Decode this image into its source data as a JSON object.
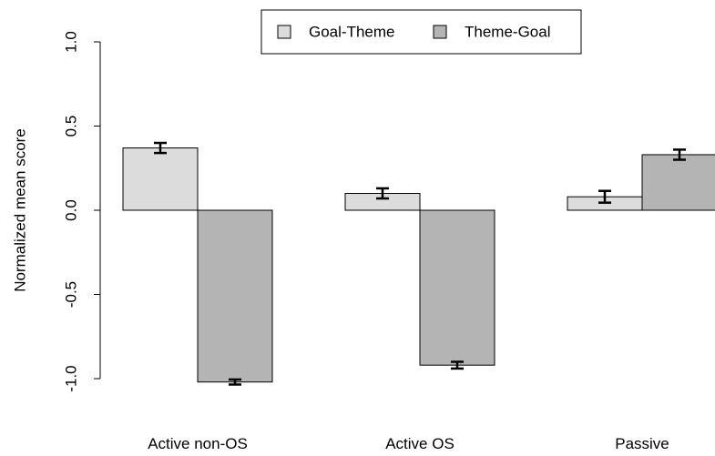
{
  "chart_data": {
    "type": "bar",
    "categories": [
      "Active non-OS",
      "Active OS",
      "Passive"
    ],
    "series": [
      {
        "name": "Goal-Theme",
        "color": "#dcdcdc",
        "values": [
          0.37,
          0.1,
          0.08
        ],
        "error": [
          0.03,
          0.03,
          0.035
        ]
      },
      {
        "name": "Theme-Goal",
        "color": "#b4b4b4",
        "values": [
          -1.02,
          -0.92,
          0.33
        ],
        "error": [
          0.015,
          0.02,
          0.03
        ]
      }
    ],
    "ylabel": "Normalized mean score",
    "xlabel": "",
    "ylim": [
      -1.0,
      1.0
    ],
    "yticks": [
      -1.0,
      -0.5,
      0.0,
      0.5,
      1.0
    ],
    "ytick_labels": [
      "-1.0",
      "-0.5",
      "0.0",
      "0.5",
      "1.0"
    ],
    "grid": false,
    "legend": "top-center"
  }
}
